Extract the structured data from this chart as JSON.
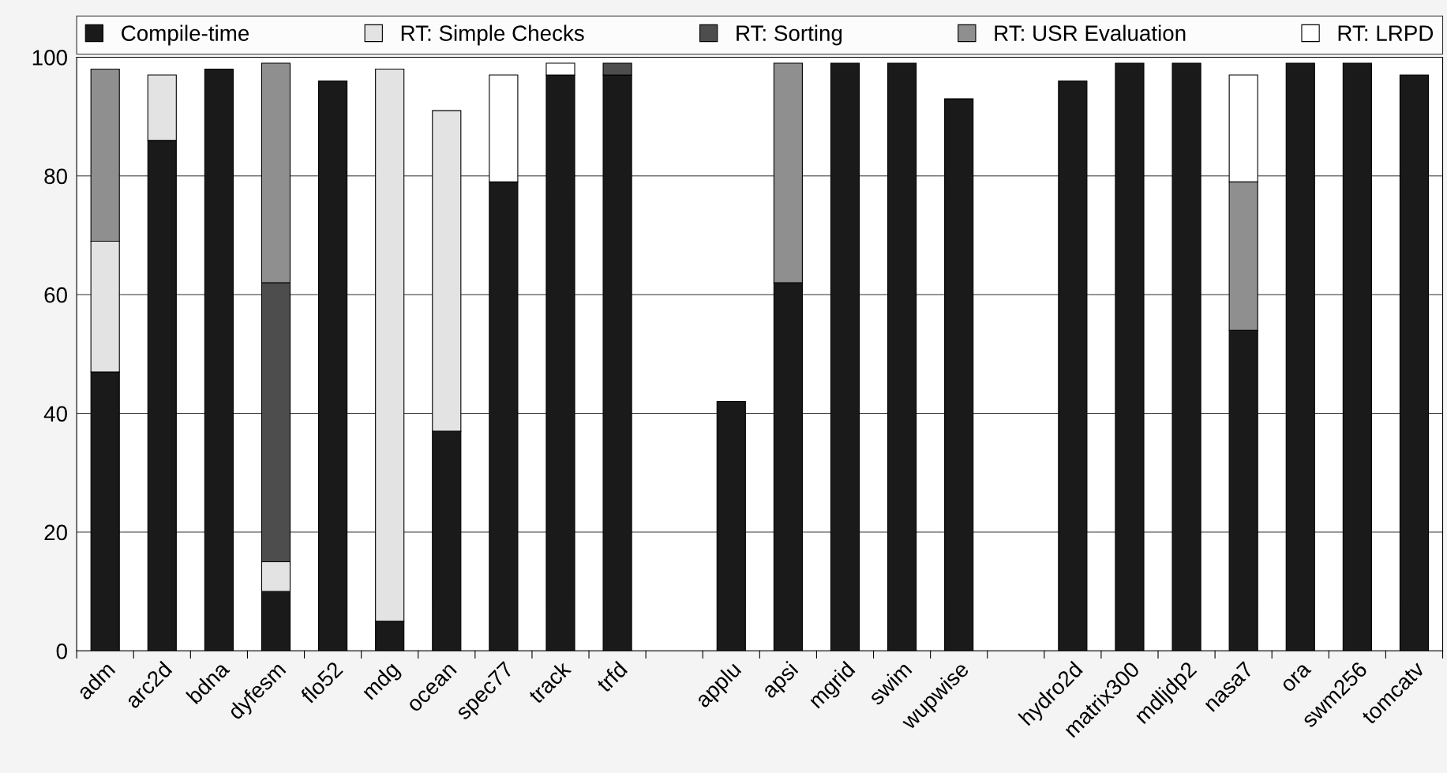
{
  "chart_data": {
    "type": "bar",
    "stacked": true,
    "categories": [
      "adm",
      "arc2d",
      "bdna",
      "dyfesm",
      "flo52",
      "mdg",
      "ocean",
      "spec77",
      "track",
      "trfd",
      null,
      "applu",
      "apsi",
      "mgrid",
      "swim",
      "wupwise",
      null,
      "hydro2d",
      "matrix300",
      "mdljdp2",
      "nasa7",
      "ora",
      "swm256",
      "tomcatv"
    ],
    "series": [
      {
        "name": "Compile-time",
        "color": "#1a1a1a",
        "values": [
          47,
          86,
          98,
          10,
          96,
          5,
          37,
          79,
          97,
          97,
          null,
          42,
          62,
          99,
          99,
          93,
          null,
          96,
          99,
          99,
          54,
          99,
          99,
          97
        ]
      },
      {
        "name": "RT: Simple Checks",
        "color": "#e3e3e3",
        "values": [
          22,
          11,
          null,
          5,
          null,
          93,
          54,
          null,
          null,
          null,
          null,
          null,
          null,
          null,
          null,
          null,
          null,
          null,
          null,
          null,
          null,
          null,
          null,
          null
        ]
      },
      {
        "name": "RT: Sorting",
        "color": "#4d4d4d",
        "values": [
          null,
          null,
          null,
          47,
          null,
          null,
          null,
          null,
          null,
          2,
          null,
          null,
          null,
          null,
          null,
          null,
          null,
          null,
          null,
          null,
          null,
          null,
          null,
          null
        ]
      },
      {
        "name": "RT: USR Evaluation",
        "color": "#8f8f8f",
        "values": [
          29,
          null,
          null,
          37,
          null,
          null,
          null,
          null,
          null,
          null,
          null,
          null,
          37,
          null,
          null,
          null,
          null,
          null,
          null,
          null,
          25,
          null,
          null,
          null
        ]
      },
      {
        "name": "RT: LRPD",
        "color": "#ffffff",
        "values": [
          null,
          null,
          null,
          null,
          null,
          null,
          null,
          18,
          2,
          null,
          null,
          null,
          null,
          null,
          null,
          null,
          null,
          null,
          null,
          null,
          18,
          null,
          null,
          null
        ]
      }
    ],
    "ylim": [
      0,
      100
    ],
    "yticks": [
      0,
      20,
      40,
      60,
      80,
      100
    ],
    "grid": "y",
    "legend": "top"
  }
}
